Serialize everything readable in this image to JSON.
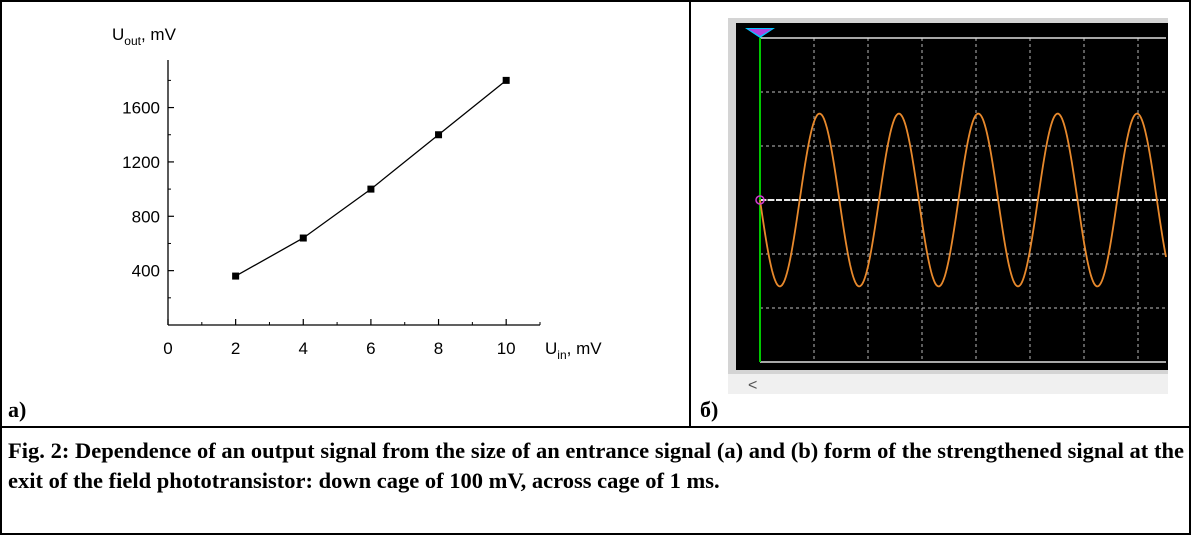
{
  "chart_data": [
    {
      "type": "line",
      "title": "",
      "xlabel": {
        "main": "U",
        "sub": "in",
        "unit": ", mV"
      },
      "ylabel": {
        "main": "U",
        "sub": "out",
        "unit": ", mV"
      },
      "x": [
        2,
        4,
        6,
        8,
        10
      ],
      "series": [
        {
          "values": [
            360,
            640,
            1000,
            1400,
            1800
          ]
        }
      ],
      "xlim": [
        0,
        11
      ],
      "ylim": [
        0,
        1950
      ],
      "xticks": [
        0,
        2,
        4,
        6,
        8,
        10
      ],
      "yticks": [
        400,
        800,
        1200,
        1600
      ],
      "marker": "square",
      "grid": false
    },
    {
      "type": "line",
      "title": "",
      "note": "oscilloscope screen: sinusoidal amplified signal",
      "divisions": {
        "x": 7.2,
        "y": 6
      },
      "grid": true,
      "trace_color": "#e8892c",
      "grid_color": "#9a9a9a",
      "baseline_color": "#e8e8e8",
      "cursor_color": "#00c800",
      "marker_color": "#d23cd2",
      "background": "#000000",
      "baseline_div": 3,
      "amplitude_div": 1.6,
      "period_div": 1.47
    }
  ],
  "panels": {
    "a_label": "а)",
    "b_label": "б)"
  },
  "scrollbar": {
    "arrow": "<"
  },
  "caption": "Fig. 2: Dependence of an output signal from the size of an entrance signal (a) and (b) form of the strengthened signal at the exit of the field phototransistor: down cage of 100 mV, across cage of 1 ms."
}
